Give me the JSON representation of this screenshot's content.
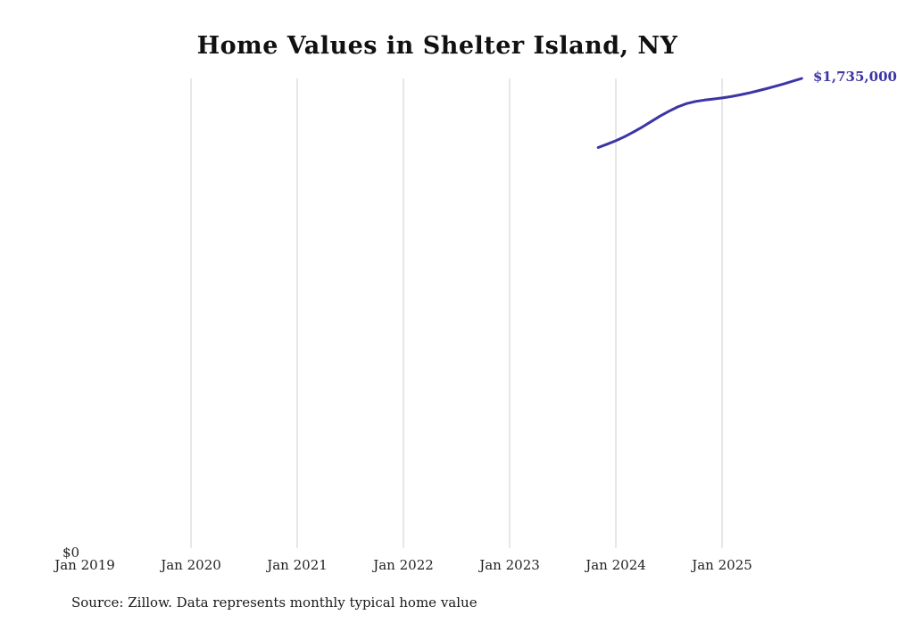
{
  "title": "Home Values in Shelter Island, NY",
  "source_note": "Source: Zillow. Data represents monthly typical home value",
  "y_zero_label": "$0",
  "end_label": "$1,735,000",
  "colors": {
    "line": "#3b35a5",
    "grid": "#cfcfcf",
    "text": "#222222",
    "title": "#111111"
  },
  "chart_data": {
    "type": "line",
    "title": "Home Values in Shelter Island, NY",
    "xlabel": "",
    "ylabel": "",
    "ylim": [
      0,
      1735000
    ],
    "grid": "vertical-only",
    "legend": "none",
    "x_tick_labels": [
      "Jan 2019",
      "Jan 2020",
      "Jan 2021",
      "Jan 2022",
      "Jan 2023",
      "Jan 2024",
      "Jan 2025"
    ],
    "y_tick_labels": [
      "$0"
    ],
    "annotations": [
      {
        "text": "$1,735,000",
        "at": "2025-10"
      }
    ],
    "series": [
      {
        "name": "Monthly typical home value",
        "points": [
          {
            "date": "2023-11",
            "value": 1480000
          },
          {
            "date": "2023-12",
            "value": 1492000
          },
          {
            "date": "2024-01",
            "value": 1505000
          },
          {
            "date": "2024-02",
            "value": 1520000
          },
          {
            "date": "2024-03",
            "value": 1537000
          },
          {
            "date": "2024-04",
            "value": 1556000
          },
          {
            "date": "2024-05",
            "value": 1576000
          },
          {
            "date": "2024-06",
            "value": 1596000
          },
          {
            "date": "2024-07",
            "value": 1614000
          },
          {
            "date": "2024-08",
            "value": 1630000
          },
          {
            "date": "2024-09",
            "value": 1642000
          },
          {
            "date": "2024-10",
            "value": 1650000
          },
          {
            "date": "2024-11",
            "value": 1655000
          },
          {
            "date": "2024-12",
            "value": 1659000
          },
          {
            "date": "2025-01",
            "value": 1663000
          },
          {
            "date": "2025-02",
            "value": 1668000
          },
          {
            "date": "2025-03",
            "value": 1674000
          },
          {
            "date": "2025-04",
            "value": 1681000
          },
          {
            "date": "2025-05",
            "value": 1689000
          },
          {
            "date": "2025-06",
            "value": 1697000
          },
          {
            "date": "2025-07",
            "value": 1706000
          },
          {
            "date": "2025-08",
            "value": 1715000
          },
          {
            "date": "2025-09",
            "value": 1725000
          },
          {
            "date": "2025-10",
            "value": 1735000
          }
        ]
      }
    ]
  }
}
